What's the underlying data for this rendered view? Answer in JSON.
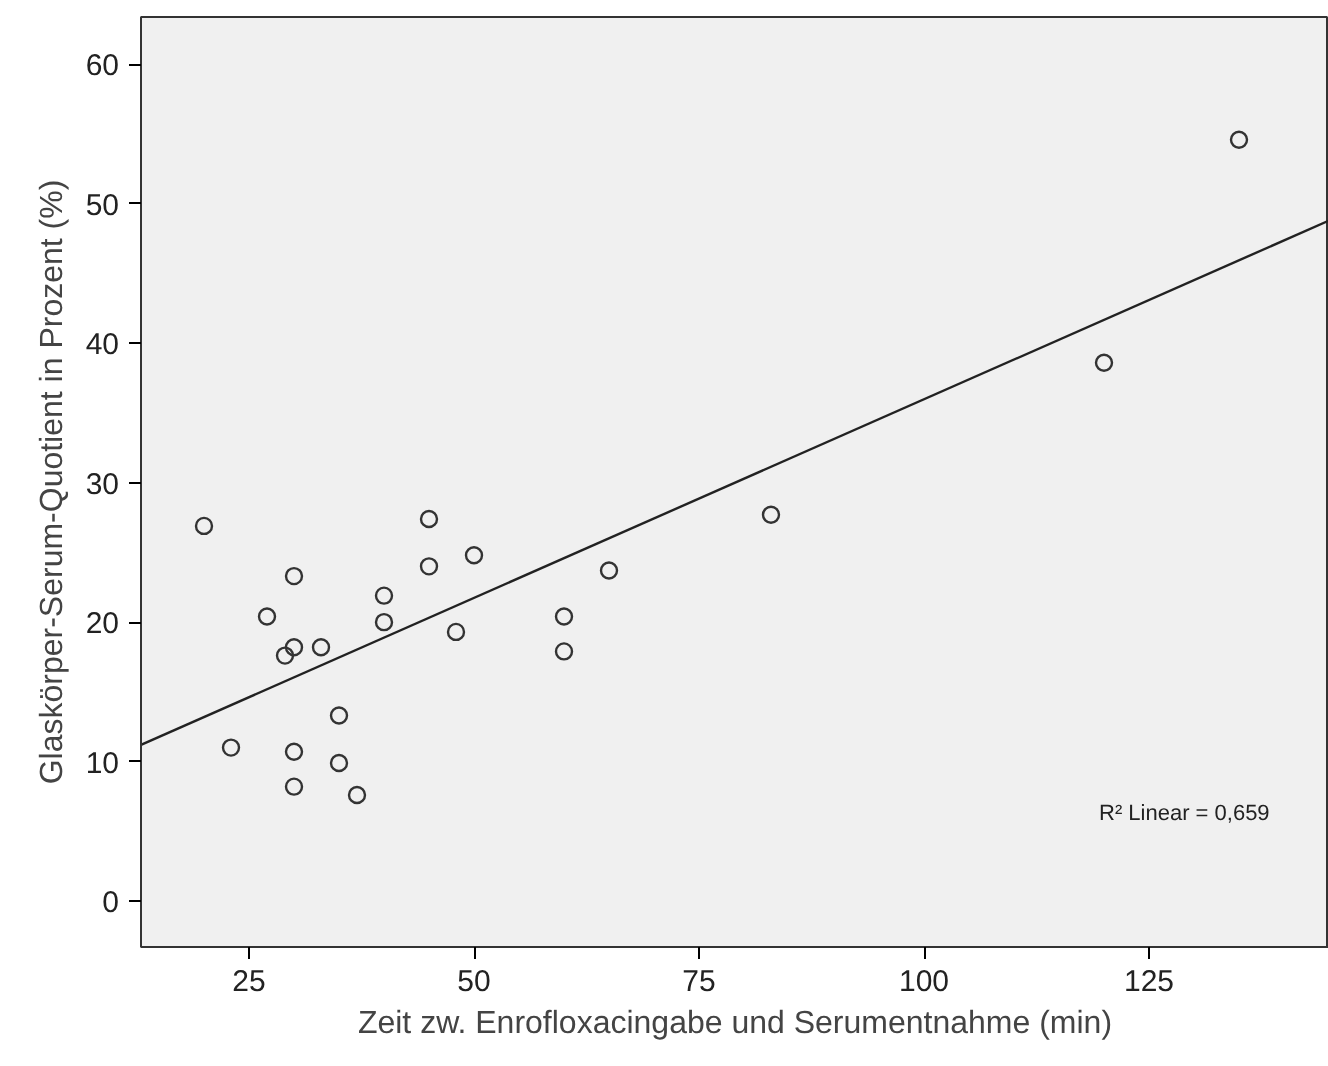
{
  "chart_data": {
    "type": "scatter",
    "xlabel": "Zeit zw. Enrofloxacingabe und Serumentnahme (min)",
    "ylabel": "Glaskörper-Serum-Quotient in Prozent (%)",
    "xlim": [
      13,
      145
    ],
    "ylim": [
      -3.3,
      63.4
    ],
    "xticks": [
      25,
      50,
      75,
      100,
      125
    ],
    "yticks": [
      0,
      10,
      20,
      30,
      40,
      50,
      60
    ],
    "grid": false,
    "annotations": [
      "R² Linear = 0,659"
    ],
    "series": [
      {
        "marker": "circle",
        "color": "#333333",
        "x": [
          20,
          23,
          27,
          29,
          30,
          30,
          30,
          30,
          33,
          35,
          35,
          37,
          40,
          40,
          45,
          45,
          48,
          50,
          60,
          60,
          65,
          83,
          120,
          135
        ],
        "values": [
          26.9,
          11.0,
          20.4,
          17.6,
          23.3,
          18.2,
          10.7,
          8.2,
          18.2,
          13.3,
          9.9,
          7.6,
          21.9,
          20.0,
          27.4,
          24.0,
          19.3,
          24.8,
          20.4,
          17.9,
          23.7,
          27.7,
          38.6,
          54.6
        ]
      },
      {
        "type": "line",
        "color": "#222222",
        "x": [
          13,
          145
        ],
        "values": [
          11.2,
          48.8
        ]
      }
    ]
  }
}
